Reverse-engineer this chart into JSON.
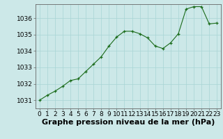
{
  "x": [
    0,
    1,
    2,
    3,
    4,
    5,
    6,
    7,
    8,
    9,
    10,
    11,
    12,
    13,
    14,
    15,
    16,
    17,
    18,
    19,
    20,
    21,
    22,
    23
  ],
  "y": [
    1031.0,
    1031.3,
    1031.55,
    1031.85,
    1032.2,
    1032.3,
    1032.75,
    1033.2,
    1033.65,
    1034.3,
    1034.85,
    1035.2,
    1035.2,
    1035.05,
    1034.8,
    1034.3,
    1034.15,
    1034.5,
    1035.05,
    1036.55,
    1036.7,
    1036.7,
    1035.65,
    1035.7
  ],
  "line_color": "#1a6b1a",
  "marker": "+",
  "bg_color": "#cce8e8",
  "grid_color": "#a8d4d4",
  "xlabel": "Graphe pression niveau de la mer (hPa)",
  "xlabel_fontsize": 8,
  "tick_label_fontsize": 6.5,
  "ylim": [
    1030.5,
    1036.85
  ],
  "xlim": [
    -0.5,
    23.5
  ],
  "yticks": [
    1031,
    1032,
    1033,
    1034,
    1035,
    1036
  ],
  "xticks": [
    0,
    1,
    2,
    3,
    4,
    5,
    6,
    7,
    8,
    9,
    10,
    11,
    12,
    13,
    14,
    15,
    16,
    17,
    18,
    19,
    20,
    21,
    22,
    23
  ]
}
